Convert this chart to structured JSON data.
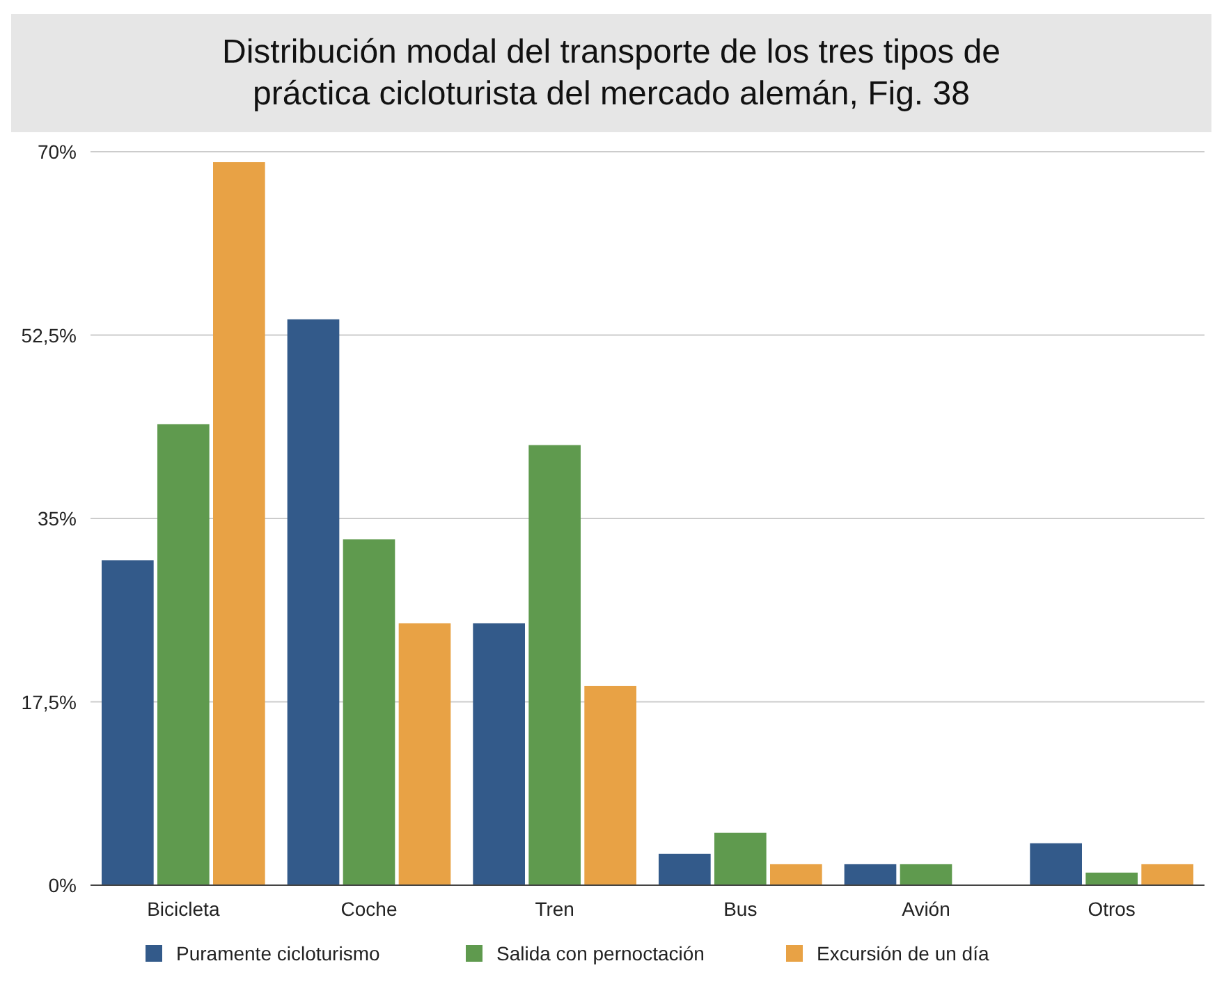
{
  "chart_data": {
    "type": "bar",
    "title": "Distribución modal del transporte de los tres tipos de práctica cicloturista del mercado alemán, Fig. 38",
    "categories": [
      "Bicicleta",
      "Coche",
      "Tren",
      "Bus",
      "Avión",
      "Otros"
    ],
    "series": [
      {
        "name": "Puramente cicloturismo",
        "color": "#335a8a",
        "values": [
          31,
          54,
          25,
          3,
          2,
          4
        ]
      },
      {
        "name": "Salida con pernoctación",
        "color": "#5f9a4e",
        "values": [
          44,
          33,
          42,
          5,
          2,
          1.2
        ]
      },
      {
        "name": "Excursión de un día",
        "color": "#e8a245",
        "values": [
          69,
          25,
          19,
          2,
          0,
          2
        ]
      }
    ],
    "ylim": [
      0,
      70
    ],
    "yticks": [
      {
        "value": 0,
        "label": "0%"
      },
      {
        "value": 17.5,
        "label": "17,5%"
      },
      {
        "value": 35,
        "label": "35%"
      },
      {
        "value": 52.5,
        "label": "52,5%"
      },
      {
        "value": 70,
        "label": "70%"
      }
    ],
    "grid": "y",
    "legend": "bottom"
  }
}
